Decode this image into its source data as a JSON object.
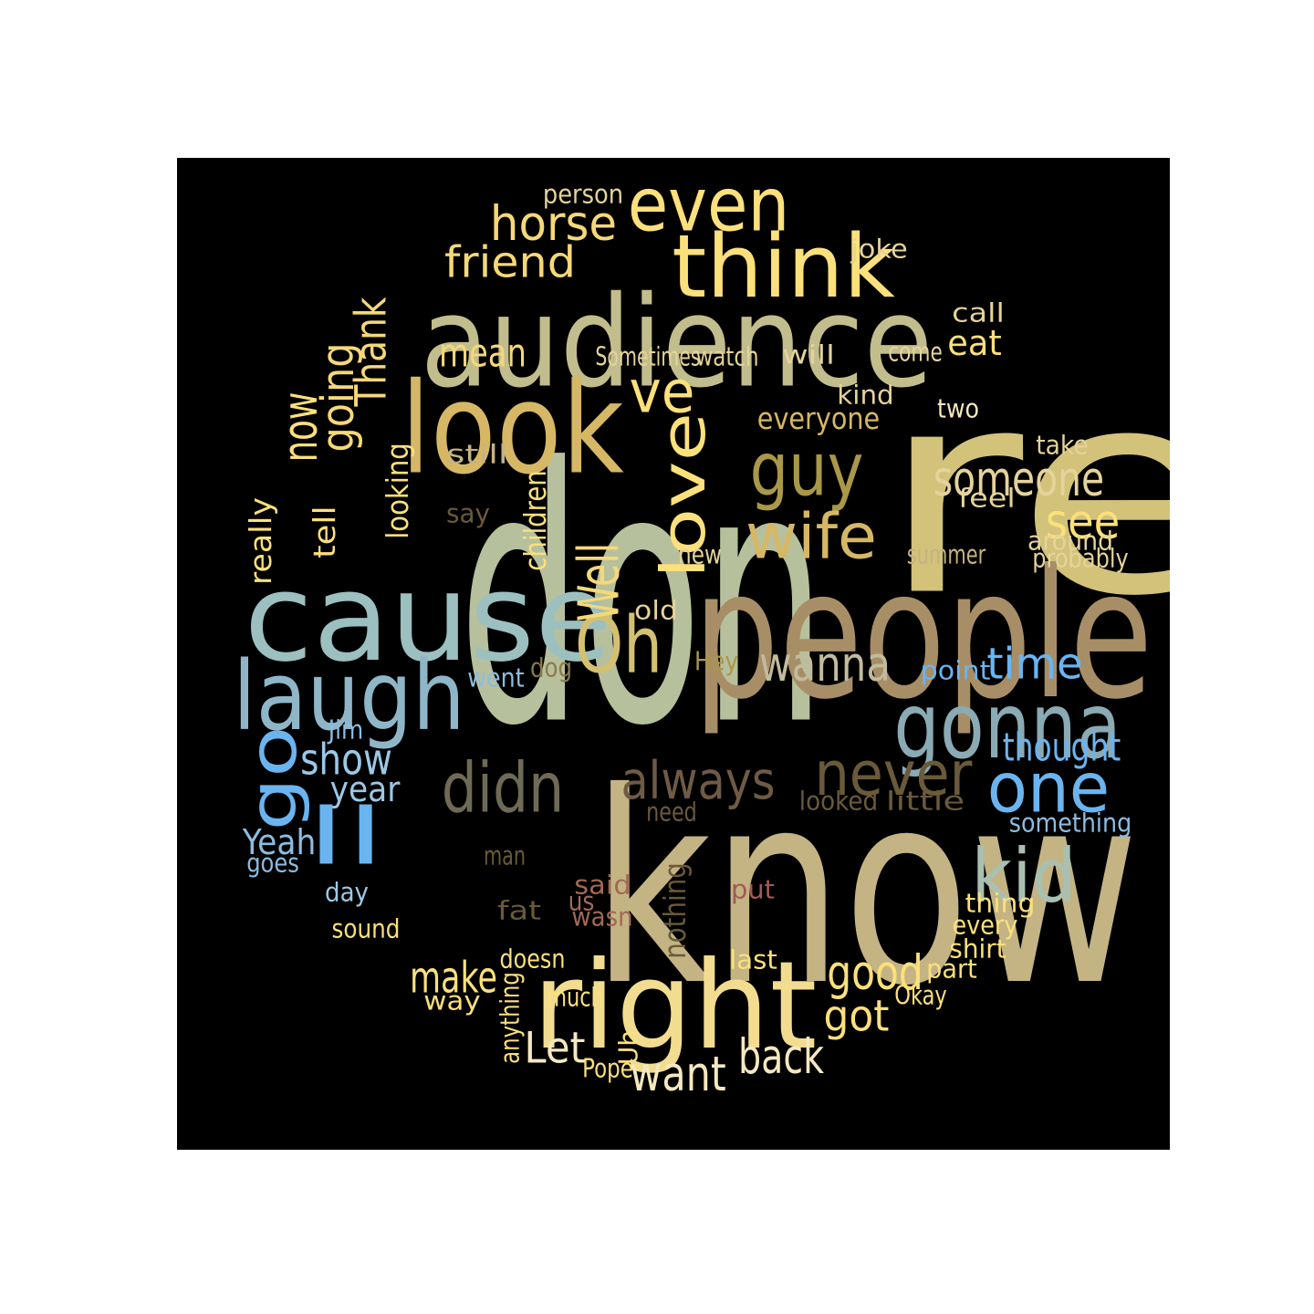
{
  "word_cloud": {
    "words": [
      {
        "text": "re",
        "color": "#d2c27a"
      },
      {
        "text": "know",
        "color": "#c4b483"
      },
      {
        "text": "don",
        "color": "#b7c09d"
      },
      {
        "text": "people",
        "color": "#a88e66"
      },
      {
        "text": "audience",
        "color": "#c2bd8c"
      },
      {
        "text": "cause",
        "color": "#9cbfbf"
      },
      {
        "text": "look",
        "color": "#d6b766"
      },
      {
        "text": "right",
        "color": "#f2dc8f"
      },
      {
        "text": "laugh",
        "color": "#8fb6c8"
      },
      {
        "text": "gonna",
        "color": "#8aaab4"
      },
      {
        "text": "think",
        "color": "#fbe07b"
      },
      {
        "text": "even",
        "color": "#fbe07b"
      },
      {
        "text": "Oh",
        "color": "#d4c071"
      },
      {
        "text": "guy",
        "color": "#a99848"
      },
      {
        "text": "wife",
        "color": "#d6b766"
      },
      {
        "text": "love",
        "color": "#fbe07b"
      },
      {
        "text": "ve",
        "color": "#fbe07b"
      },
      {
        "text": "didn",
        "color": "#6f6a55"
      },
      {
        "text": "never",
        "color": "#6a5a3a"
      },
      {
        "text": "one",
        "color": "#6ab4f0"
      },
      {
        "text": "kid",
        "color": "#a9c0b0"
      },
      {
        "text": "ll",
        "color": "#6ab4f0"
      },
      {
        "text": "go",
        "color": "#6ab4f0"
      },
      {
        "text": "always",
        "color": "#6f5a45"
      },
      {
        "text": "Well",
        "color": "#f5d878"
      },
      {
        "text": "someone",
        "color": "#e5d39b"
      },
      {
        "text": "wanna",
        "color": "#c2bb9d"
      },
      {
        "text": "horse",
        "color": "#f5d878"
      },
      {
        "text": "friend",
        "color": "#f5d878"
      },
      {
        "text": "Thank",
        "color": "#f5d878"
      },
      {
        "text": "going",
        "color": "#f5d878"
      },
      {
        "text": "now",
        "color": "#fbe07b"
      },
      {
        "text": "mean",
        "color": "#f5d878"
      },
      {
        "text": "see",
        "color": "#fbe07b"
      },
      {
        "text": "time",
        "color": "#6ab4f0"
      },
      {
        "text": "show",
        "color": "#9cc8e6"
      },
      {
        "text": "thought",
        "color": "#6ab4f0"
      },
      {
        "text": "good",
        "color": "#fbe07b"
      },
      {
        "text": "make",
        "color": "#fbe07b"
      },
      {
        "text": "got",
        "color": "#fbe07b"
      },
      {
        "text": "want",
        "color": "#f5e8c0"
      },
      {
        "text": "back",
        "color": "#f5e8c0"
      },
      {
        "text": "Let",
        "color": "#f5e8c0"
      },
      {
        "text": "year",
        "color": "#9cc8e6"
      },
      {
        "text": "Yeah",
        "color": "#8ebce0"
      },
      {
        "text": "person",
        "color": "#e5d39b"
      },
      {
        "text": "joke",
        "color": "#e5d39b"
      },
      {
        "text": "call",
        "color": "#e5d39b"
      },
      {
        "text": "eat",
        "color": "#fbe07b"
      },
      {
        "text": "Sometimes",
        "color": "#e5d39b"
      },
      {
        "text": "watch",
        "color": "#e5d39b"
      },
      {
        "text": "will",
        "color": "#e5d39b"
      },
      {
        "text": "come",
        "color": "#e5d39b"
      },
      {
        "text": "kind",
        "color": "#e5d39b"
      },
      {
        "text": "everyone",
        "color": "#d6b766"
      },
      {
        "text": "two",
        "color": "#f5e8c0"
      },
      {
        "text": "take",
        "color": "#e5d39b"
      },
      {
        "text": "still",
        "color": "#c4b483"
      },
      {
        "text": "feel",
        "color": "#e5d39b"
      },
      {
        "text": "say",
        "color": "#6a5a3a"
      },
      {
        "text": "around",
        "color": "#e5d39b"
      },
      {
        "text": "probably",
        "color": "#e5d39b"
      },
      {
        "text": "summer",
        "color": "#c4b483"
      },
      {
        "text": "new",
        "color": "#e5d39b"
      },
      {
        "text": "old",
        "color": "#e5d39b"
      },
      {
        "text": "Hey",
        "color": "#a99848"
      },
      {
        "text": "point",
        "color": "#6ab4f0"
      },
      {
        "text": "went",
        "color": "#8ebce0"
      },
      {
        "text": "dog",
        "color": "#8a7a4a"
      },
      {
        "text": "Jim",
        "color": "#8ebce0"
      },
      {
        "text": "need",
        "color": "#6a5a3a"
      },
      {
        "text": "looked",
        "color": "#6a5a3a"
      },
      {
        "text": "little",
        "color": "#6a5a3a"
      },
      {
        "text": "something",
        "color": "#8ebce0"
      },
      {
        "text": "man",
        "color": "#6a5a3a"
      },
      {
        "text": "said",
        "color": "#a06a55"
      },
      {
        "text": "us",
        "color": "#a06a55"
      },
      {
        "text": "wasn",
        "color": "#a06a55"
      },
      {
        "text": "put",
        "color": "#a05a55"
      },
      {
        "text": "nothing",
        "color": "#6a5a3a"
      },
      {
        "text": "fat",
        "color": "#6a5a3a"
      },
      {
        "text": "thing",
        "color": "#fbe07b"
      },
      {
        "text": "every",
        "color": "#fbe07b"
      },
      {
        "text": "shirt",
        "color": "#fbe07b"
      },
      {
        "text": "day",
        "color": "#9cc8e6"
      },
      {
        "text": "goes",
        "color": "#8ebce0"
      },
      {
        "text": "sound",
        "color": "#fbe07b"
      },
      {
        "text": "doesn",
        "color": "#fbe07b"
      },
      {
        "text": "last",
        "color": "#fbe07b"
      },
      {
        "text": "part",
        "color": "#fbe07b"
      },
      {
        "text": "Okay",
        "color": "#fbe07b"
      },
      {
        "text": "way",
        "color": "#fbe07b"
      },
      {
        "text": "much",
        "color": "#fbe07b"
      },
      {
        "text": "anything",
        "color": "#fbe07b"
      },
      {
        "text": "Uh",
        "color": "#fbe07b"
      },
      {
        "text": "Pope",
        "color": "#fbe07b"
      },
      {
        "text": "really",
        "color": "#fbe07b"
      },
      {
        "text": "tell",
        "color": "#fbe07b"
      },
      {
        "text": "looking",
        "color": "#fbe07b"
      },
      {
        "text": "children",
        "color": "#fbe07b"
      }
    ]
  }
}
